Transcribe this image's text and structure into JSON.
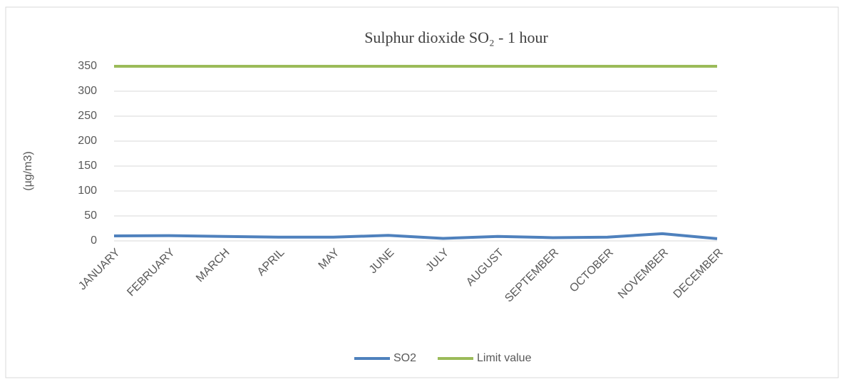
{
  "chart_data": {
    "type": "line",
    "title": "Sulphur dioxide SO₂ - 1 hour",
    "y_label": "(µg/m3)",
    "categories": [
      "JANUARY",
      "FEBRUARY",
      "MARCH",
      "APRIL",
      "MAY",
      "JUNE",
      "JULY",
      "AUGUST",
      "SEPTEMBER",
      "OCTOBER",
      "NOVEMBER",
      "DECEMBER"
    ],
    "series": [
      {
        "name": "SO2",
        "color": "#4f81bd",
        "values": [
          10,
          10.5,
          9,
          7.5,
          7.5,
          11,
          5,
          9,
          6.5,
          7.5,
          14.5,
          4.5
        ]
      },
      {
        "name": "Limit value",
        "color": "#9bbb59",
        "values": [
          350,
          350,
          350,
          350,
          350,
          350,
          350,
          350,
          350,
          350,
          350,
          350
        ]
      }
    ],
    "ylim": [
      0,
      350
    ],
    "yticks": [
      0,
      50,
      100,
      150,
      200,
      250,
      300,
      350
    ],
    "grid": true,
    "legend": "bottom"
  }
}
